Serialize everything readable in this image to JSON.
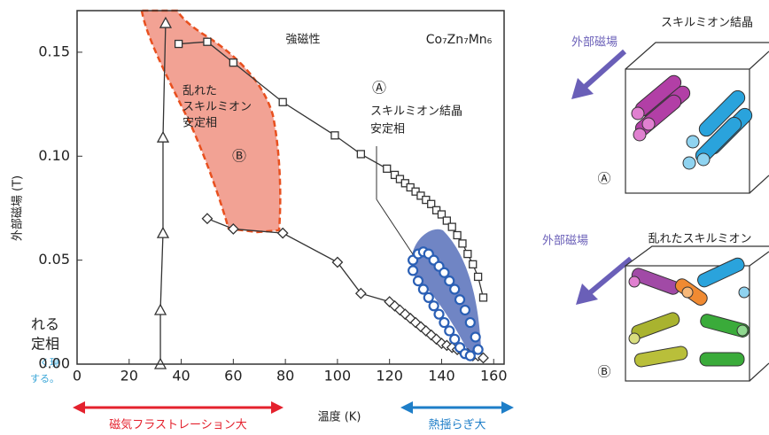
{
  "chart_data": {
    "type": "scatter",
    "x_label": "温度 (K)",
    "y_label": "外部磁場 (T)",
    "xlim": [
      0,
      164
    ],
    "ylim": [
      0,
      0.17
    ],
    "xticks": [
      0,
      20,
      40,
      60,
      80,
      100,
      120,
      140,
      160
    ],
    "yticks": [
      {
        "value": 0,
        "label": "0.00"
      },
      {
        "value": 0.05,
        "label": "0.05"
      },
      {
        "value": 0.1,
        "label": "0.10"
      },
      {
        "value": 0.15,
        "label": "0.15"
      }
    ],
    "series": [
      {
        "marker": "square",
        "color": "#333333",
        "connect": true,
        "x": [
          39,
          50,
          60,
          79,
          99,
          109,
          119,
          122,
          124,
          126,
          128,
          130,
          132,
          134,
          136,
          138,
          140,
          142,
          144,
          146,
          148,
          150,
          152,
          154,
          156
        ],
        "y": [
          0.154,
          0.155,
          0.145,
          0.126,
          0.11,
          0.101,
          0.094,
          0.091,
          0.089,
          0.087,
          0.085,
          0.083,
          0.081,
          0.079,
          0.077,
          0.074,
          0.072,
          0.069,
          0.066,
          0.062,
          0.058,
          0.053,
          0.048,
          0.042,
          0.032
        ]
      },
      {
        "marker": "diamond",
        "color": "#333333",
        "connect": true,
        "x": [
          50,
          60,
          79,
          100,
          109,
          120,
          122,
          124,
          126,
          128,
          130,
          132,
          134,
          136,
          138,
          140,
          142,
          144,
          146,
          148,
          150,
          152,
          154,
          156
        ],
        "y": [
          0.07,
          0.065,
          0.063,
          0.049,
          0.034,
          0.03,
          0.028,
          0.026,
          0.024,
          0.022,
          0.02,
          0.018,
          0.016,
          0.014,
          0.012,
          0.01,
          0.009,
          0.008,
          0.007,
          0.006,
          0.005,
          0.004,
          0.004,
          0.003
        ]
      },
      {
        "marker": "triangle",
        "color": "#333333",
        "connect": true,
        "x": [
          32,
          32,
          33,
          33,
          34
        ],
        "y": [
          0,
          0.026,
          0.063,
          0.109,
          0.164
        ]
      },
      {
        "marker": "circle",
        "color": "#2a5fb5",
        "connect": false,
        "x": [
          129,
          131,
          133,
          135,
          137,
          139,
          141,
          143,
          145,
          147,
          149,
          151,
          153,
          154,
          129,
          131,
          133,
          135,
          137,
          139,
          141,
          143,
          145,
          147,
          149,
          151
        ],
        "y": [
          0.05,
          0.053,
          0.054,
          0.053,
          0.05,
          0.047,
          0.044,
          0.04,
          0.036,
          0.031,
          0.026,
          0.02,
          0.013,
          0.007,
          0.045,
          0.04,
          0.036,
          0.032,
          0.028,
          0.024,
          0.02,
          0.016,
          0.012,
          0.008,
          0.005,
          0.004
        ]
      }
    ],
    "annotations": [
      "強磁性",
      "Co₇Zn₇Mn₆",
      "Ⓐ",
      "スキルミオン結晶",
      "安定相",
      "乱れた",
      "スキルミオン",
      "安定相",
      "Ⓑ"
    ]
  },
  "figure": {
    "arrow_left": "磁気フラストレーション大",
    "arrow_right": "熱揺らぎ大",
    "panel_a": {
      "title": "スキルミオン結晶",
      "field": "外部磁場",
      "label": "Ⓐ"
    },
    "panel_b": {
      "title": "乱れたスキルミオン",
      "field": "外部磁場",
      "label": "Ⓑ"
    },
    "cut_text": [
      "れる",
      "定相",
      "く現",
      "する。"
    ]
  }
}
